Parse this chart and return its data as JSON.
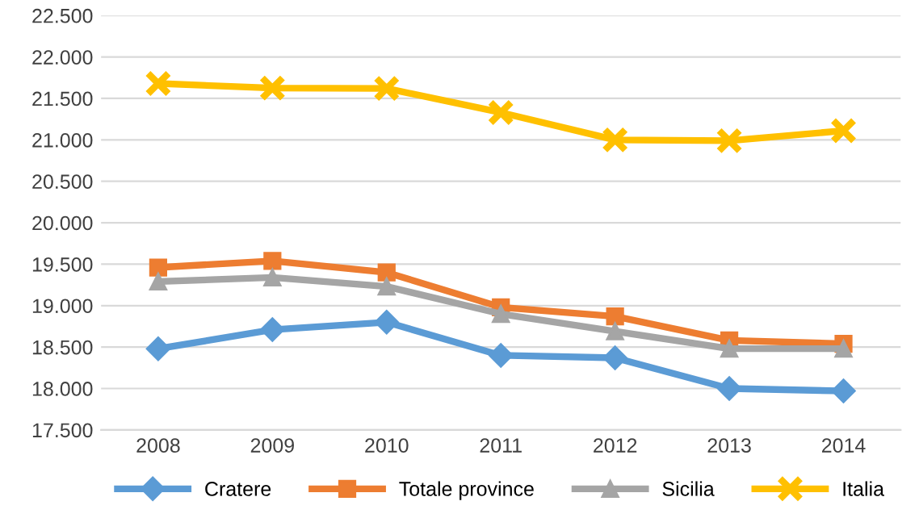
{
  "chart_data": {
    "type": "line",
    "categories": [
      "2008",
      "2009",
      "2010",
      "2011",
      "2012",
      "2013",
      "2014"
    ],
    "series": [
      {
        "name": "Cratere",
        "color": "#5b9bd5",
        "marker": "diamond",
        "values": [
          18480,
          18710,
          18800,
          18400,
          18370,
          18000,
          17970
        ]
      },
      {
        "name": "Totale province",
        "color": "#ed7d31",
        "marker": "square",
        "values": [
          19460,
          19540,
          19400,
          18980,
          18870,
          18580,
          18540
        ]
      },
      {
        "name": "Sicilia",
        "color": "#a5a5a5",
        "marker": "triangle",
        "values": [
          19290,
          19340,
          19230,
          18900,
          18690,
          18480,
          18480
        ]
      },
      {
        "name": "Italia",
        "color": "#ffc000",
        "marker": "cross",
        "values": [
          21680,
          21625,
          21620,
          21330,
          21000,
          20990,
          21110
        ]
      }
    ],
    "ylim": [
      17500,
      22500
    ],
    "yticks": [
      {
        "value": 17500,
        "label": "17.500"
      },
      {
        "value": 18000,
        "label": "18.000"
      },
      {
        "value": 18500,
        "label": "18.500"
      },
      {
        "value": 19000,
        "label": "19.000"
      },
      {
        "value": 19500,
        "label": "19.500"
      },
      {
        "value": 20000,
        "label": "20.000"
      },
      {
        "value": 20500,
        "label": "20.500"
      },
      {
        "value": 21000,
        "label": "21.000"
      },
      {
        "value": 21500,
        "label": "21.500"
      },
      {
        "value": 22000,
        "label": "22.000"
      },
      {
        "value": 22500,
        "label": "22.500"
      }
    ],
    "grid": "y",
    "legend": "bottom",
    "line_style": "solid"
  }
}
